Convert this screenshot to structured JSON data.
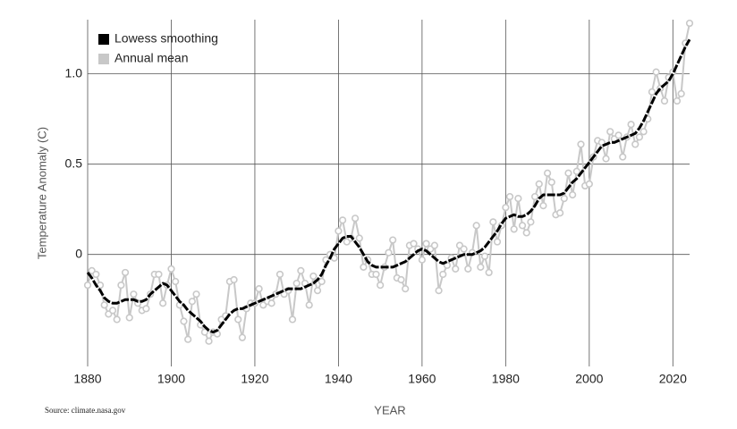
{
  "chart_data": {
    "type": "line",
    "xlabel": "YEAR",
    "ylabel": "Temperature Anomaly (C)",
    "source": "Source: climate.nasa.gov",
    "legend_loc": "upper left",
    "grid": true,
    "xlim": [
      1880,
      2024
    ],
    "xticks": [
      1880,
      1900,
      1920,
      1940,
      1960,
      1980,
      2000,
      2020
    ],
    "ylim": [
      -0.62,
      1.3
    ],
    "yticks": [
      0,
      0.5,
      {
        "value": 1,
        "label": "1.0"
      }
    ],
    "x": [
      1880,
      1881,
      1882,
      1883,
      1884,
      1885,
      1886,
      1887,
      1888,
      1889,
      1890,
      1891,
      1892,
      1893,
      1894,
      1895,
      1896,
      1897,
      1898,
      1899,
      1900,
      1901,
      1902,
      1903,
      1904,
      1905,
      1906,
      1907,
      1908,
      1909,
      1910,
      1911,
      1912,
      1913,
      1914,
      1915,
      1916,
      1917,
      1918,
      1919,
      1920,
      1921,
      1922,
      1923,
      1924,
      1925,
      1926,
      1927,
      1928,
      1929,
      1930,
      1931,
      1932,
      1933,
      1934,
      1935,
      1936,
      1937,
      1938,
      1939,
      1940,
      1941,
      1942,
      1943,
      1944,
      1945,
      1946,
      1947,
      1948,
      1949,
      1950,
      1951,
      1952,
      1953,
      1954,
      1955,
      1956,
      1957,
      1958,
      1959,
      1960,
      1961,
      1962,
      1963,
      1964,
      1965,
      1966,
      1967,
      1968,
      1969,
      1970,
      1971,
      1972,
      1973,
      1974,
      1975,
      1976,
      1977,
      1978,
      1979,
      1980,
      1981,
      1982,
      1983,
      1984,
      1985,
      1986,
      1987,
      1988,
      1989,
      1990,
      1991,
      1992,
      1993,
      1994,
      1995,
      1996,
      1997,
      1998,
      1999,
      2000,
      2001,
      2002,
      2003,
      2004,
      2005,
      2006,
      2007,
      2008,
      2009,
      2010,
      2011,
      2012,
      2013,
      2014,
      2015,
      2016,
      2017,
      2018,
      2019,
      2020,
      2021,
      2022,
      2023,
      2024
    ],
    "series": [
      {
        "name": "Lowess smoothing",
        "color": "#000000",
        "line_style": "dashed",
        "values": [
          -0.1,
          -0.13,
          -0.17,
          -0.2,
          -0.24,
          -0.26,
          -0.27,
          -0.27,
          -0.26,
          -0.25,
          -0.25,
          -0.25,
          -0.26,
          -0.26,
          -0.25,
          -0.22,
          -0.2,
          -0.18,
          -0.16,
          -0.17,
          -0.2,
          -0.23,
          -0.26,
          -0.28,
          -0.31,
          -0.33,
          -0.35,
          -0.37,
          -0.4,
          -0.42,
          -0.43,
          -0.42,
          -0.39,
          -0.36,
          -0.33,
          -0.31,
          -0.3,
          -0.3,
          -0.29,
          -0.28,
          -0.27,
          -0.26,
          -0.25,
          -0.24,
          -0.23,
          -0.22,
          -0.21,
          -0.2,
          -0.19,
          -0.19,
          -0.19,
          -0.19,
          -0.18,
          -0.17,
          -0.16,
          -0.14,
          -0.11,
          -0.06,
          -0.02,
          0.03,
          0.06,
          0.09,
          0.1,
          0.1,
          0.07,
          0.04,
          0.0,
          -0.04,
          -0.06,
          -0.07,
          -0.07,
          -0.07,
          -0.07,
          -0.07,
          -0.06,
          -0.05,
          -0.04,
          -0.02,
          0.0,
          0.02,
          0.03,
          0.02,
          0.0,
          -0.02,
          -0.04,
          -0.05,
          -0.04,
          -0.03,
          -0.02,
          -0.01,
          0.0,
          0.0,
          0.0,
          0.01,
          0.02,
          0.04,
          0.07,
          0.1,
          0.13,
          0.17,
          0.2,
          0.21,
          0.22,
          0.21,
          0.21,
          0.22,
          0.24,
          0.27,
          0.31,
          0.33,
          0.33,
          0.33,
          0.33,
          0.33,
          0.34,
          0.37,
          0.4,
          0.42,
          0.45,
          0.48,
          0.51,
          0.54,
          0.57,
          0.6,
          0.61,
          0.62,
          0.62,
          0.63,
          0.64,
          0.65,
          0.66,
          0.67,
          0.7,
          0.74,
          0.79,
          0.84,
          0.89,
          0.92,
          0.94,
          0.96,
          1.0,
          1.05,
          1.1,
          1.15,
          1.19
        ]
      },
      {
        "name": "Annual mean",
        "color": "#c8c8c8",
        "marker": "circle",
        "values": [
          -0.17,
          -0.09,
          -0.11,
          -0.17,
          -0.28,
          -0.33,
          -0.31,
          -0.36,
          -0.17,
          -0.1,
          -0.35,
          -0.22,
          -0.27,
          -0.31,
          -0.3,
          -0.22,
          -0.11,
          -0.11,
          -0.27,
          -0.17,
          -0.08,
          -0.15,
          -0.28,
          -0.37,
          -0.47,
          -0.26,
          -0.22,
          -0.39,
          -0.43,
          -0.48,
          -0.43,
          -0.44,
          -0.36,
          -0.34,
          -0.15,
          -0.14,
          -0.36,
          -0.46,
          -0.3,
          -0.27,
          -0.27,
          -0.19,
          -0.28,
          -0.26,
          -0.27,
          -0.22,
          -0.11,
          -0.22,
          -0.2,
          -0.36,
          -0.16,
          -0.09,
          -0.16,
          -0.28,
          -0.12,
          -0.2,
          -0.15,
          -0.03,
          0,
          -0.02,
          0.13,
          0.19,
          0.07,
          0.09,
          0.2,
          0.09,
          -0.07,
          -0.03,
          -0.11,
          -0.11,
          -0.17,
          -0.07,
          0.01,
          0.08,
          -0.13,
          -0.14,
          -0.19,
          0.05,
          0.06,
          0.03,
          -0.03,
          0.06,
          0.03,
          0.05,
          -0.2,
          -0.11,
          -0.06,
          -0.02,
          -0.08,
          0.05,
          0.03,
          -0.08,
          0.01,
          0.16,
          -0.07,
          -0.01,
          -0.1,
          0.18,
          0.07,
          0.16,
          0.26,
          0.32,
          0.14,
          0.31,
          0.16,
          0.12,
          0.18,
          0.32,
          0.39,
          0.27,
          0.45,
          0.4,
          0.22,
          0.23,
          0.31,
          0.45,
          0.33,
          0.46,
          0.61,
          0.38,
          0.39,
          0.54,
          0.63,
          0.62,
          0.53,
          0.68,
          0.64,
          0.66,
          0.54,
          0.65,
          0.72,
          0.61,
          0.65,
          0.68,
          0.75,
          0.9,
          1.01,
          0.92,
          0.85,
          0.98,
          1.01,
          0.85,
          0.89,
          1.17,
          1.28
        ]
      }
    ]
  }
}
